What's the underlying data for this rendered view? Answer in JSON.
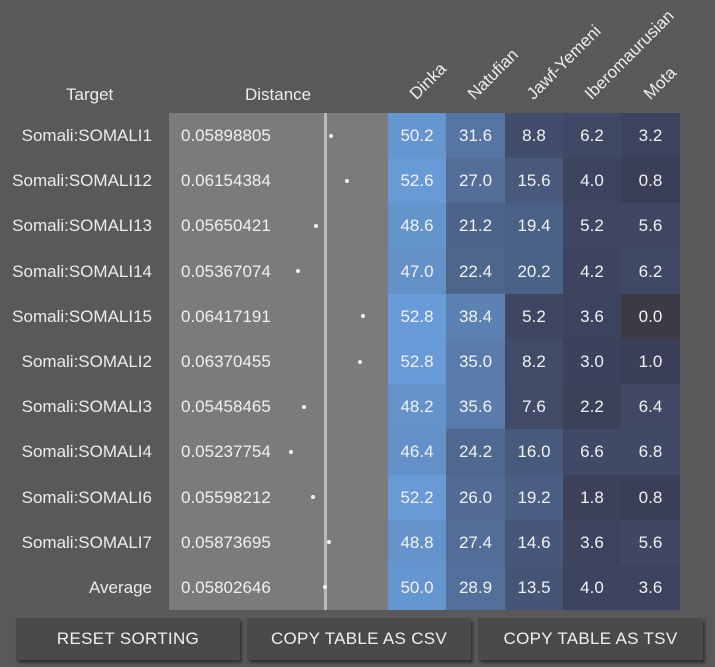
{
  "headers": {
    "target": "Target",
    "distance": "Distance",
    "populations": [
      "Dinka",
      "Natufian",
      "Jawf-Yemeni",
      "Iberomaurusian",
      "Mota"
    ]
  },
  "rows": [
    {
      "target": "Somali:SOMALI1",
      "distance": "0.05898805",
      "values": [
        "50.2",
        "31.6",
        "8.8",
        "6.2",
        "3.2"
      ]
    },
    {
      "target": "Somali:SOMALI12",
      "distance": "0.06154384",
      "values": [
        "52.6",
        "27.0",
        "15.6",
        "4.0",
        "0.8"
      ]
    },
    {
      "target": "Somali:SOMALI13",
      "distance": "0.05650421",
      "values": [
        "48.6",
        "21.2",
        "19.4",
        "5.2",
        "5.6"
      ]
    },
    {
      "target": "Somali:SOMALI14",
      "distance": "0.05367074",
      "values": [
        "47.0",
        "22.4",
        "20.2",
        "4.2",
        "6.2"
      ]
    },
    {
      "target": "Somali:SOMALI15",
      "distance": "0.06417191",
      "values": [
        "52.8",
        "38.4",
        "5.2",
        "3.6",
        "0.0"
      ]
    },
    {
      "target": "Somali:SOMALI2",
      "distance": "0.06370455",
      "values": [
        "52.8",
        "35.0",
        "8.2",
        "3.0",
        "1.0"
      ]
    },
    {
      "target": "Somali:SOMALI3",
      "distance": "0.05458465",
      "values": [
        "48.2",
        "35.6",
        "7.6",
        "2.2",
        "6.4"
      ]
    },
    {
      "target": "Somali:SOMALI4",
      "distance": "0.05237754",
      "values": [
        "46.4",
        "24.2",
        "16.0",
        "6.6",
        "6.8"
      ]
    },
    {
      "target": "Somali:SOMALI6",
      "distance": "0.05598212",
      "values": [
        "52.2",
        "26.0",
        "19.2",
        "1.8",
        "0.8"
      ]
    },
    {
      "target": "Somali:SOMALI7",
      "distance": "0.05873695",
      "values": [
        "48.8",
        "27.4",
        "14.6",
        "3.6",
        "5.6"
      ]
    },
    {
      "target": "Average",
      "distance": "0.05802646",
      "values": [
        "50.0",
        "28.9",
        "13.5",
        "4.0",
        "3.6"
      ]
    }
  ],
  "buttons": {
    "reset": "RESET SORTING",
    "copy_csv": "COPY TABLE AS CSV",
    "copy_tsv": "COPY TABLE AS TSV"
  },
  "colors": {
    "background": "#595959",
    "distance_panel": "#7b7b7b",
    "cell_low": "#3a3d55",
    "cell_high": "#6a9fdc",
    "cell_zero": "#3d3a45"
  }
}
